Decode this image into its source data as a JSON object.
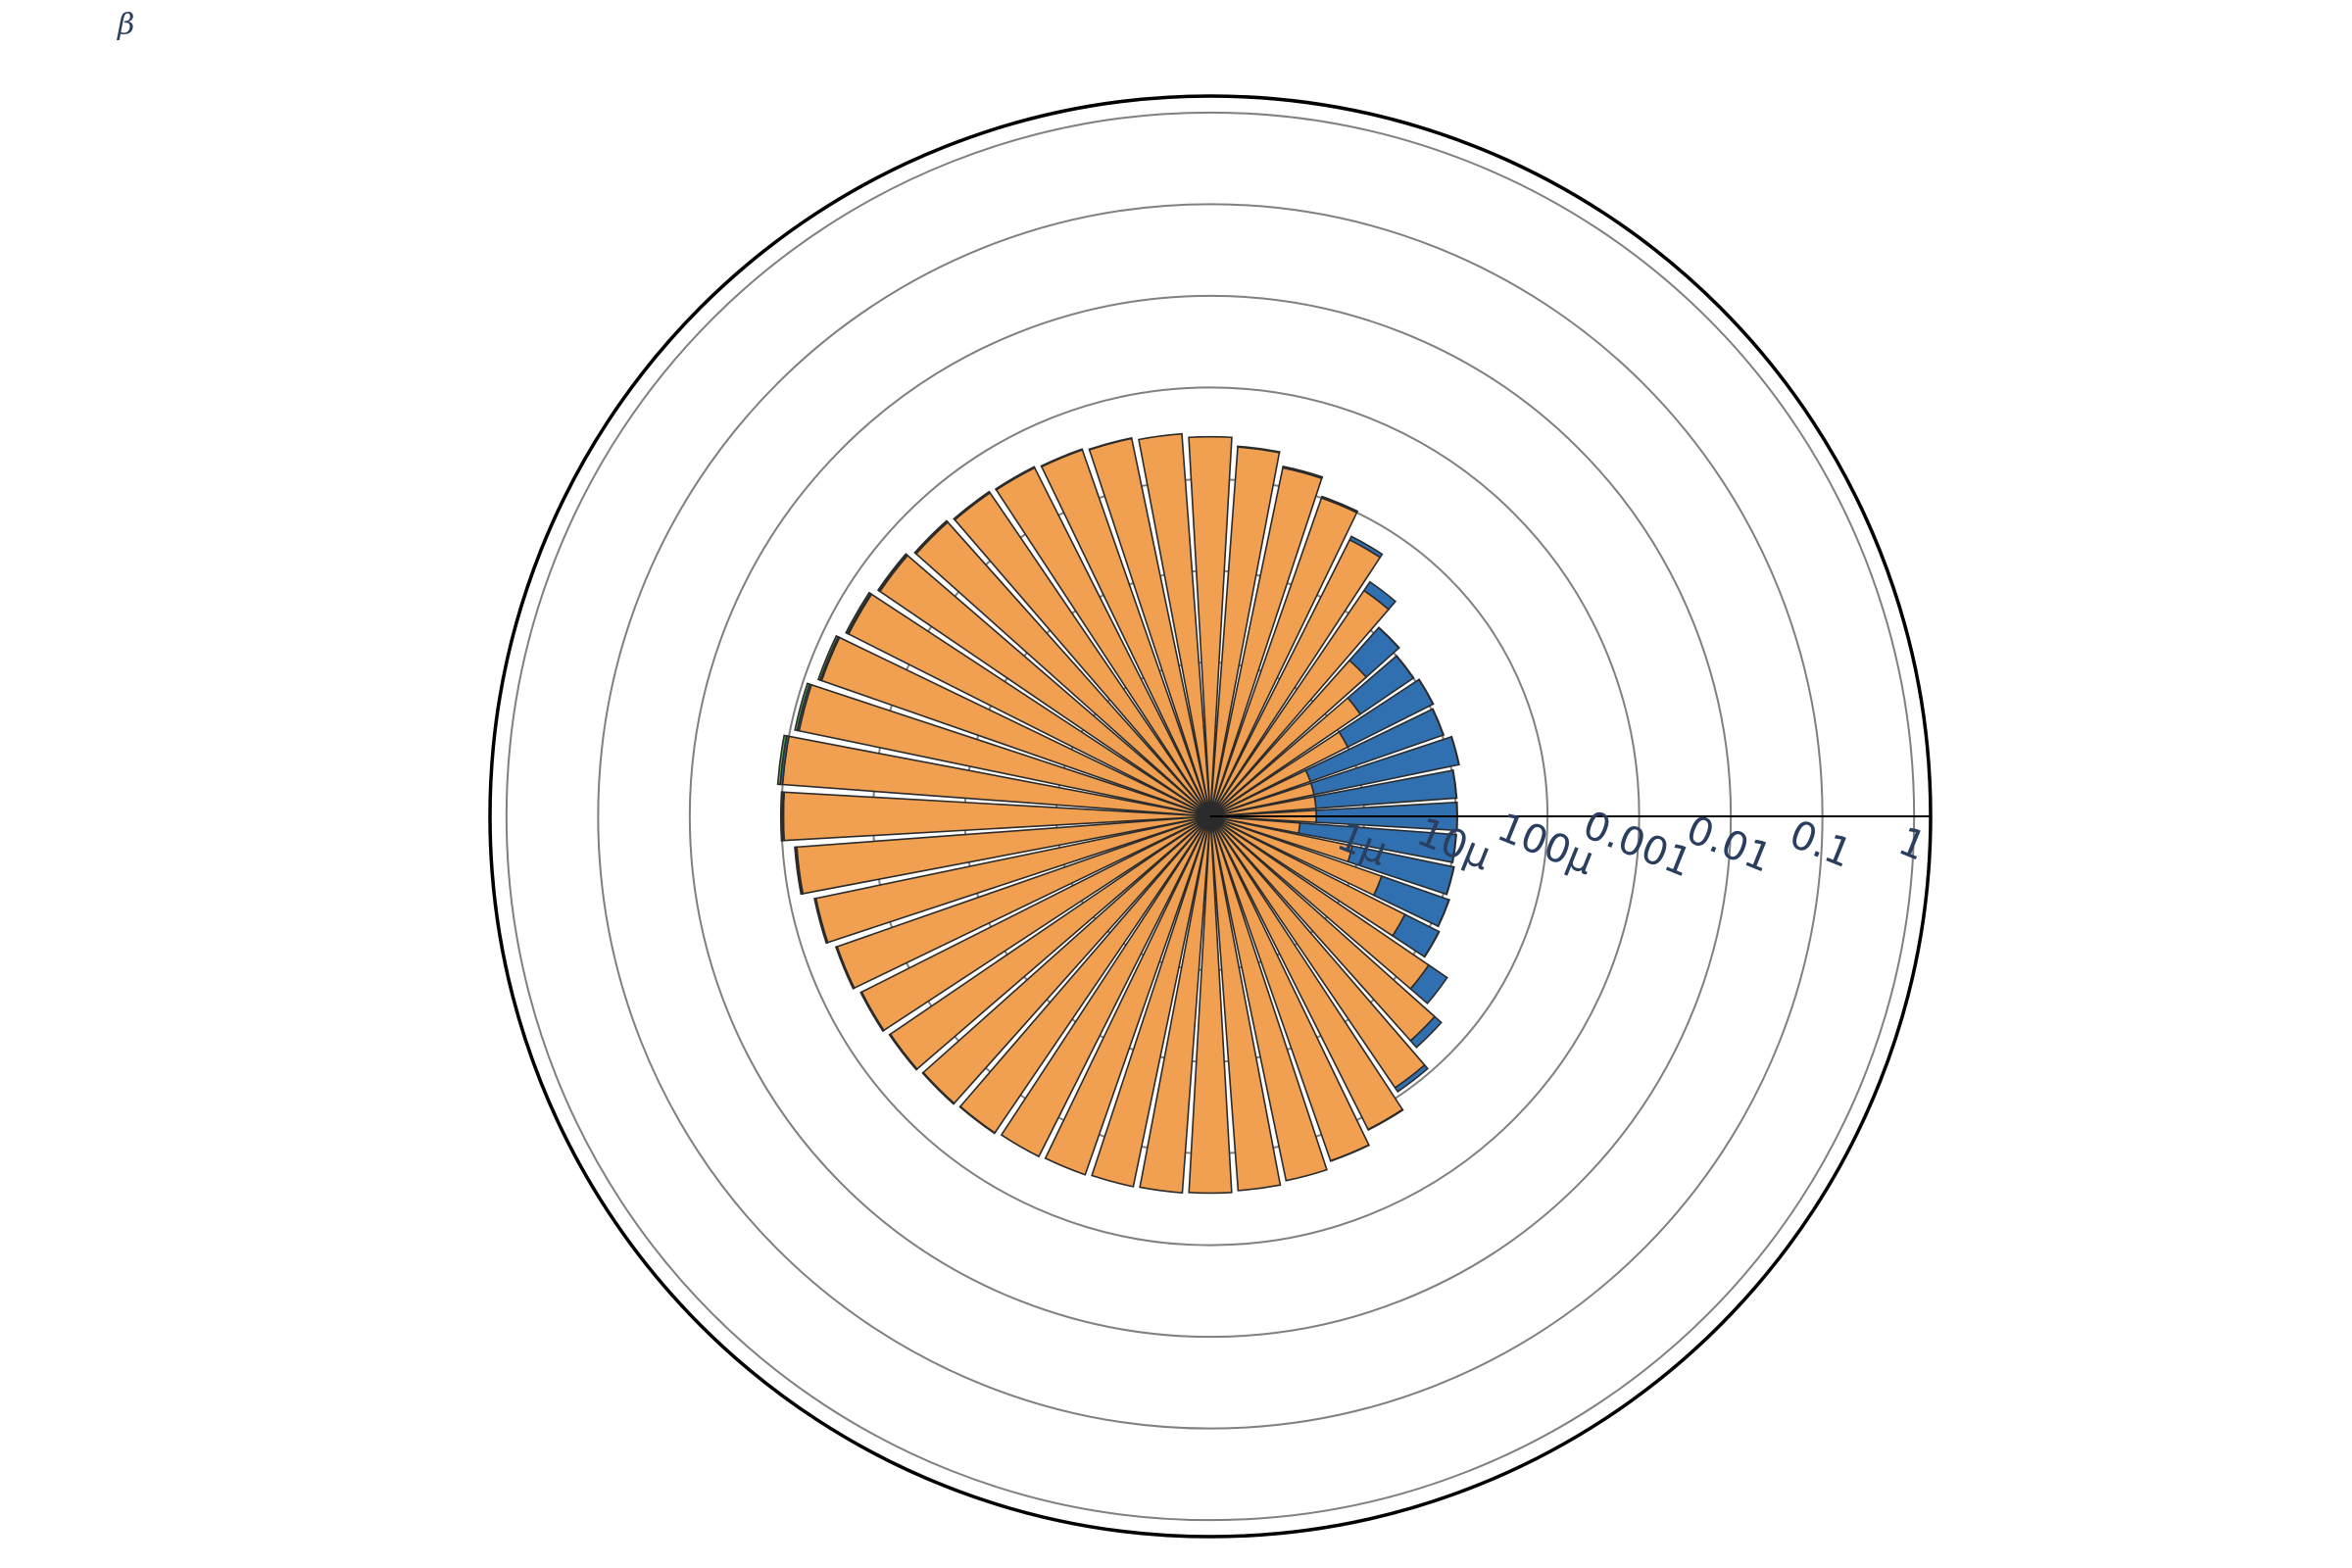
{
  "corner_label": "β",
  "chart_data": {
    "type": "bar",
    "subtype": "polar-stacked-barpolar",
    "radial_axis": {
      "type": "log",
      "range": [
        -7.68,
        0.18
      ],
      "tick_values": [
        1e-06,
        1e-05,
        0.0001,
        0.001,
        0.01,
        0.1,
        1
      ],
      "tick_labels": [
        "1μ",
        "10μ",
        "100μ",
        "0.001",
        "0.01",
        "0.1",
        "1"
      ],
      "grid": true
    },
    "angular_axis": {
      "direction": "counterclockwise",
      "zero": "east",
      "units": "degrees"
    },
    "bar_width_deg": 6.5,
    "theta": [
      0,
      7.5,
      15,
      22.5,
      30,
      37.5,
      45,
      52.5,
      60,
      67.5,
      75,
      82.5,
      90,
      97.5,
      105,
      112.5,
      120,
      127.5,
      135,
      142.5,
      150,
      157.5,
      165,
      172.5,
      180,
      187.5,
      195,
      202.5,
      210,
      217.5,
      225,
      232.5,
      240,
      247.5,
      255,
      262.5,
      270,
      277.5,
      285,
      292.5,
      300,
      307.5,
      315,
      322.5,
      330,
      337.5,
      345,
      352.5
    ],
    "series": [
      {
        "color": "#f0a050",
        "values": [
          3e-07,
          3e-07,
          3e-07,
          3e-07,
          1e-06,
          2e-06,
          4e-06,
          2e-05,
          5e-05,
          0.0001,
          0.00016,
          0.00023,
          0.00029,
          0.00032,
          0.00034,
          0.00036,
          0.00038,
          0.00039,
          0.00042,
          0.00048,
          0.00055,
          0.00065,
          0.0008,
          0.001,
          0.00095,
          0.0007,
          0.00052,
          0.00043,
          0.00038,
          0.00035,
          0.00033,
          0.000315,
          0.0003,
          0.00029,
          0.00028,
          0.000275,
          0.00027,
          0.00026,
          0.00024,
          0.0002,
          0.00014,
          8e-05,
          4e-05,
          1.6e-05,
          5e-06,
          2e-06,
          8e-07,
          2e-07
        ]
      },
      {
        "color": "#3070b0",
        "values": [
          1e-05,
          1e-05,
          1.2e-05,
          1e-05,
          1e-05,
          8e-06,
          8e-06,
          6e-06,
          5e-06,
          4e-06,
          3e-06,
          2e-06,
          1.5e-06,
          1.5e-06,
          2e-06,
          3e-06,
          4e-06,
          5e-06,
          6e-06,
          1e-05,
          1.6e-05,
          2.5e-05,
          4e-05,
          6e-05,
          2.5e-05,
          1.5e-05,
          8e-06,
          6e-06,
          5e-06,
          4e-06,
          3e-06,
          2e-06,
          1.5e-06,
          1e-06,
          1e-06,
          1e-06,
          1e-06,
          1e-06,
          1e-06,
          2e-06,
          2e-06,
          1e-05,
          1e-05,
          1.2e-05,
          8e-06,
          1e-05,
          1e-05,
          1e-05
        ]
      },
      {
        "color": "#55b050",
        "values": [
          1e-07,
          1e-07,
          1e-07,
          1e-07,
          1e-07,
          1e-07,
          1e-07,
          1e-07,
          1e-07,
          1e-07,
          3e-06,
          2e-06,
          1e-06,
          2e-06,
          3e-06,
          4e-06,
          6e-06,
          9e-06,
          1.3e-05,
          1.8e-05,
          2.5e-05,
          3.5e-05,
          5e-05,
          7e-05,
          4e-05,
          2e-05,
          1.2e-05,
          8e-06,
          6e-06,
          5e-06,
          4e-06,
          3e-06,
          2e-06,
          2e-06,
          1.5e-06,
          1.5e-06,
          1e-06,
          1e-06,
          1e-06,
          1e-06,
          1e-07,
          1e-07,
          1e-07,
          1e-07,
          1e-07,
          1e-07,
          1e-07,
          1e-07
        ]
      }
    ]
  }
}
